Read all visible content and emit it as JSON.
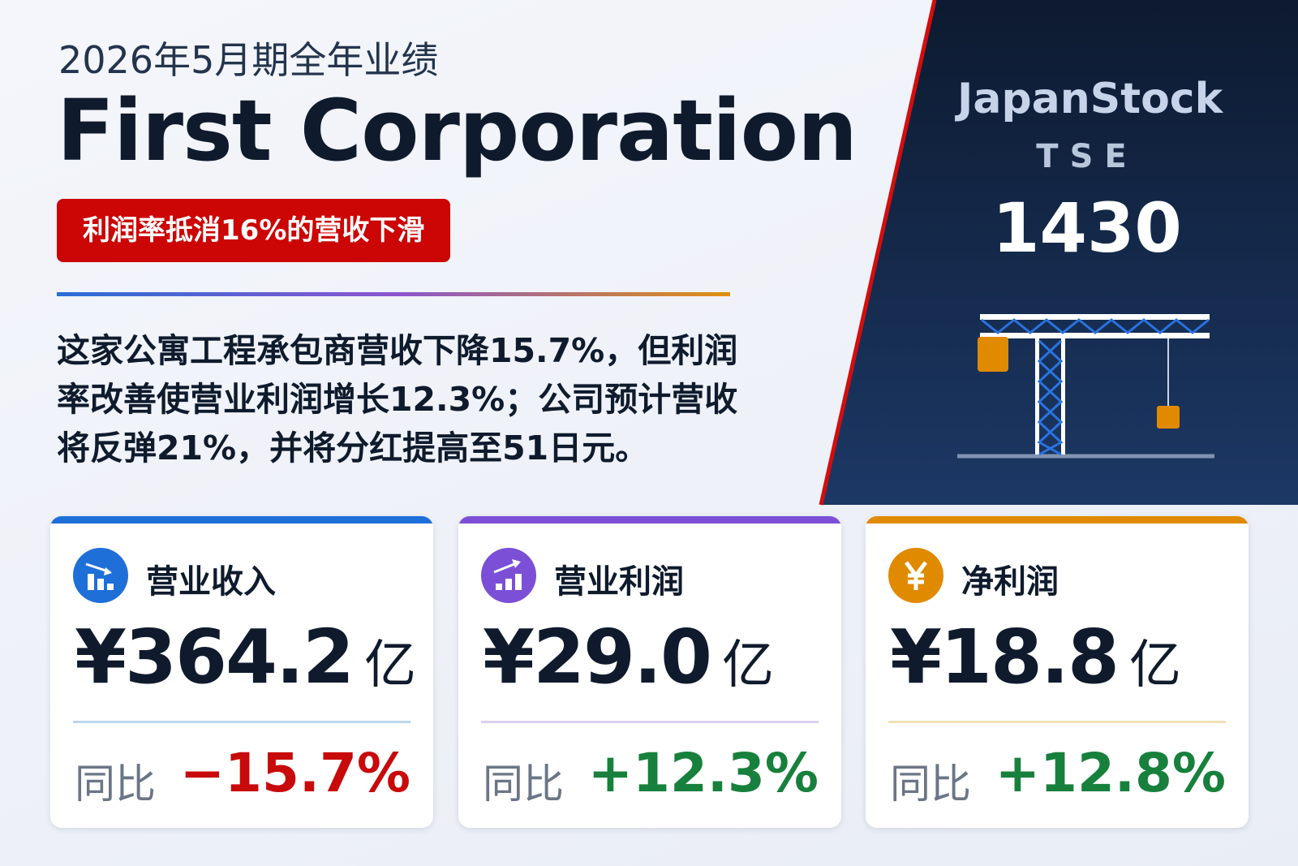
{
  "header": {
    "subtitle": "2026年5月期全年业绩",
    "title": "First Corporation",
    "badge": "利润率抵消16%的营收下滑"
  },
  "summary": "这家公寓工程承包商营收下降15.7%，但利润率改善使营业利润增长12.3%；公司预计营收将反弹21%，并将分红提高至51日元。",
  "brand": {
    "name": "JapanStock",
    "exchange": "TSE",
    "code": "1430"
  },
  "cards": [
    {
      "label": "营业收入",
      "value": "¥364.2",
      "unit": "亿",
      "yoy_label": "同比",
      "change": "−15.7%"
    },
    {
      "label": "营业利润",
      "value": "¥29.0",
      "unit": "亿",
      "yoy_label": "同比",
      "change": "+12.3%"
    },
    {
      "label": "净利润",
      "value": "¥18.8",
      "unit": "亿",
      "yoy_label": "同比",
      "change": "+12.8%"
    }
  ]
}
